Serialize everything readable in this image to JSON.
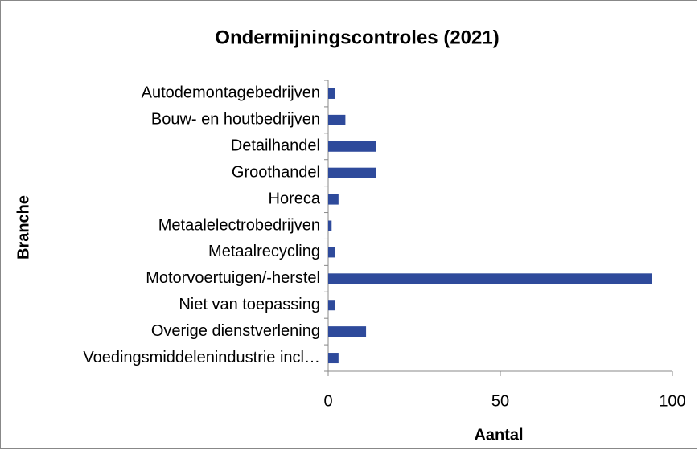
{
  "chart_data": {
    "type": "barh",
    "title": "Ondermijningscontroles (2021)",
    "x_label": "Aantal",
    "y_label": "Branche",
    "categories": [
      "Autodemontagebedrijven",
      "Bouw- en houtbedrijven",
      "Detailhandel",
      "Groothandel",
      "Horeca",
      "Metaalelectrobedrijven",
      "Metaalrecycling",
      "Motorvoertuigen/-herstel",
      "Niet van toepassing",
      "Overige dienstverlening",
      "Voedingsmiddelenindustrie incl…"
    ],
    "values": [
      2,
      5,
      14,
      14,
      3,
      1,
      2,
      94,
      2,
      11,
      3
    ],
    "color": "#2e4a9b",
    "xlim": [
      0,
      100
    ],
    "xticks": [
      0,
      50,
      100
    ],
    "grid": false
  }
}
